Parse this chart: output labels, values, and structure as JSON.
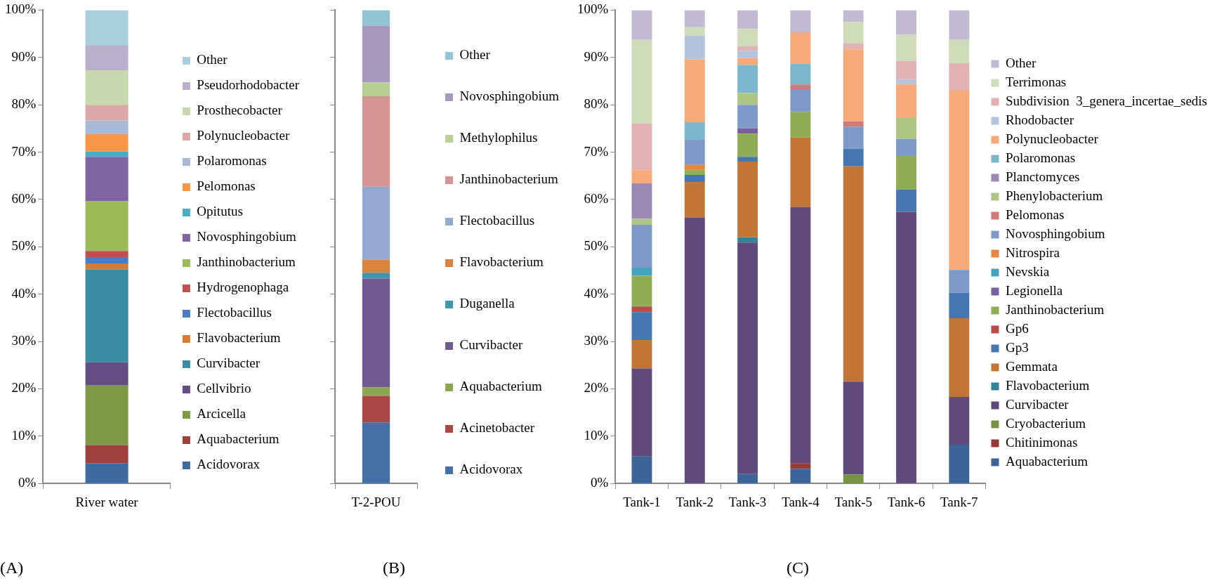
{
  "chart_data": [
    {
      "type": "bar",
      "stacked": true,
      "categories": [
        "River water"
      ],
      "ylim": [
        0,
        100
      ],
      "yticks": [
        {
          "value": 0,
          "label": "0%"
        },
        {
          "value": 10,
          "label": "10%"
        },
        {
          "value": 20,
          "label": "20%"
        },
        {
          "value": 30,
          "label": "30%"
        },
        {
          "value": 40,
          "label": "40%"
        },
        {
          "value": 50,
          "label": "50%"
        },
        {
          "value": 60,
          "label": "60%"
        },
        {
          "value": 70,
          "label": "70%"
        },
        {
          "value": 80,
          "label": "80%"
        },
        {
          "value": 90,
          "label": "90%"
        },
        {
          "value": 100,
          "label": "100%"
        }
      ],
      "grid": false,
      "legend": "right",
      "annotations": [
        "(A)"
      ],
      "series": [
        {
          "name": "Acidovorax",
          "color": "#3e6aa0",
          "values": [
            4.3
          ]
        },
        {
          "name": "Aquabacterium",
          "color": "#a0403d",
          "values": [
            3.8
          ]
        },
        {
          "name": "Arcicella",
          "color": "#7d9a45",
          "values": [
            12.6
          ]
        },
        {
          "name": "Cellvibrio",
          "color": "#644d84",
          "values": [
            4.9
          ]
        },
        {
          "name": "Curvibacter",
          "color": "#3a8ca3",
          "values": [
            19.6
          ]
        },
        {
          "name": "Flavobacterium",
          "color": "#d17c37",
          "values": [
            1.3
          ]
        },
        {
          "name": "Flectobacillus",
          "color": "#4a7ebf",
          "values": [
            1.3
          ]
        },
        {
          "name": "Hydrogenophaga",
          "color": "#c0504d",
          "values": [
            1.3
          ]
        },
        {
          "name": "Janthinobacterium",
          "color": "#9bbb59",
          "values": [
            10.5
          ]
        },
        {
          "name": "Novosphingobium",
          "color": "#8064a2",
          "values": [
            9.4
          ]
        },
        {
          "name": "Opitutus",
          "color": "#4bacc6",
          "values": [
            1.1
          ]
        },
        {
          "name": "Pelomonas",
          "color": "#f79646",
          "values": [
            3.7
          ]
        },
        {
          "name": "Polaromonas",
          "color": "#aab9d7",
          "values": [
            2.9
          ]
        },
        {
          "name": "Polynucleobacter",
          "color": "#dba8a7",
          "values": [
            3.3
          ]
        },
        {
          "name": "Prosthecobacter",
          "color": "#c7d8ac",
          "values": [
            7.3
          ]
        },
        {
          "name": "Pseudorhodobacter",
          "color": "#bbb0cc",
          "values": [
            5.3
          ]
        },
        {
          "name": "Other",
          "color": "#a9cfdd",
          "values": [
            7.4
          ]
        }
      ]
    },
    {
      "type": "bar",
      "stacked": true,
      "categories": [
        "T-2-POU"
      ],
      "ylim": [
        0,
        100
      ],
      "yticks": [
        {
          "value": 0,
          "label": null
        },
        {
          "value": 10,
          "label": null
        },
        {
          "value": 20,
          "label": null
        },
        {
          "value": 30,
          "label": null
        },
        {
          "value": 40,
          "label": null
        },
        {
          "value": 50,
          "label": null
        },
        {
          "value": 60,
          "label": null
        },
        {
          "value": 70,
          "label": null
        },
        {
          "value": 80,
          "label": null
        },
        {
          "value": 90,
          "label": null
        },
        {
          "value": 100,
          "label": null
        }
      ],
      "tick_labels": "x",
      "grid": false,
      "legend": "right",
      "annotations": [
        "(B)"
      ],
      "series": [
        {
          "name": "Acidovorax",
          "color": "#4470a5",
          "values": [
            12.9
          ]
        },
        {
          "name": "Acinetobacter",
          "color": "#aa4644",
          "values": [
            5.6
          ]
        },
        {
          "name": "Aquabacterium",
          "color": "#8aa652",
          "values": [
            1.8
          ]
        },
        {
          "name": "Curvibacter",
          "color": "#71588f",
          "values": [
            23.0
          ]
        },
        {
          "name": "Duganella",
          "color": "#3e97ad",
          "values": [
            1.2
          ]
        },
        {
          "name": "Flavobacterium",
          "color": "#db843d",
          "values": [
            2.8
          ]
        },
        {
          "name": "Flectobacillus",
          "color": "#95a8d0",
          "values": [
            15.4
          ]
        },
        {
          "name": "Janthinobacterium",
          "color": "#d49593",
          "values": [
            19.1
          ]
        },
        {
          "name": "Methylophilus",
          "color": "#b9d095",
          "values": [
            2.9
          ]
        },
        {
          "name": "Novosphingobium",
          "color": "#a699bd",
          "values": [
            12.0
          ]
        },
        {
          "name": "Other",
          "color": "#93c5d6",
          "values": [
            3.3
          ]
        }
      ]
    },
    {
      "type": "bar",
      "stacked": true,
      "categories": [
        "Tank-1",
        "Tank-2",
        "Tank-3",
        "Tank-4",
        "Tank-5",
        "Tank-6",
        "Tank-7"
      ],
      "ylim": [
        0,
        100
      ],
      "yticks": [
        {
          "value": 0,
          "label": "0%"
        },
        {
          "value": 10,
          "label": "10%"
        },
        {
          "value": 20,
          "label": "20%"
        },
        {
          "value": 30,
          "label": "30%"
        },
        {
          "value": 40,
          "label": "40%"
        },
        {
          "value": 50,
          "label": "50%"
        },
        {
          "value": 60,
          "label": "60%"
        },
        {
          "value": 70,
          "label": "70%"
        },
        {
          "value": 80,
          "label": "80%"
        },
        {
          "value": 90,
          "label": "90%"
        },
        {
          "value": 100,
          "label": "100%"
        }
      ],
      "grid": false,
      "legend": "right",
      "annotations": [
        "(C)"
      ],
      "series": [
        {
          "name": "Aquabacterium",
          "color": "#3c6497",
          "values": [
            5.7,
            0,
            2.0,
            3.1,
            0,
            0,
            8.2
          ]
        },
        {
          "name": "Chitinimonas",
          "color": "#983a37",
          "values": [
            0,
            0,
            0,
            1.2,
            0,
            0,
            0
          ]
        },
        {
          "name": "Cryobacterium",
          "color": "#769443",
          "values": [
            0,
            0,
            0,
            0,
            1.9,
            0,
            0
          ]
        },
        {
          "name": "Curvibacter",
          "color": "#604a7b",
          "values": [
            18.6,
            56.2,
            48.9,
            54.1,
            19.6,
            57.4,
            10.1
          ]
        },
        {
          "name": "Flavobacterium",
          "color": "#31849b",
          "values": [
            0,
            0,
            1.1,
            0,
            0,
            0,
            0
          ]
        },
        {
          "name": "Gemmata",
          "color": "#c27534",
          "values": [
            6.0,
            7.5,
            16.0,
            14.7,
            45.5,
            0,
            16.6
          ]
        },
        {
          "name": "Gp3",
          "color": "#4777b0",
          "values": [
            5.9,
            1.5,
            1.0,
            0,
            3.7,
            4.7,
            5.4
          ]
        },
        {
          "name": "Gp6",
          "color": "#b94c49",
          "values": [
            1.2,
            0,
            0,
            0,
            0,
            0,
            0
          ]
        },
        {
          "name": "Janthinobacterium",
          "color": "#8fad52",
          "values": [
            6.5,
            1.0,
            4.9,
            5.4,
            0,
            7.1,
            0
          ]
        },
        {
          "name": "Legionella",
          "color": "#7a5f9e",
          "values": [
            0,
            0,
            1.1,
            0,
            0,
            0,
            0
          ]
        },
        {
          "name": "Nevskia",
          "color": "#45a4bd",
          "values": [
            1.7,
            0,
            0,
            0,
            0,
            0,
            0
          ]
        },
        {
          "name": "Nitrospira",
          "color": "#e8883d",
          "values": [
            0,
            1.1,
            0,
            0,
            0,
            0,
            0
          ]
        },
        {
          "name": "Novosphingobium",
          "color": "#7e9ac8",
          "values": [
            9.1,
            5.4,
            5.0,
            4.8,
            4.7,
            3.6,
            4.8
          ]
        },
        {
          "name": "Pelomonas",
          "color": "#cd7c7a",
          "values": [
            0,
            0,
            0,
            1.0,
            1.1,
            0,
            0
          ]
        },
        {
          "name": "Phenylobacterium",
          "color": "#aec683",
          "values": [
            1.2,
            0,
            2.5,
            0,
            0,
            4.4,
            0
          ]
        },
        {
          "name": "Planctomyces",
          "color": "#9b89b4",
          "values": [
            7.5,
            0,
            0,
            0,
            0,
            0,
            0
          ]
        },
        {
          "name": "Polaromonas",
          "color": "#7bb8cd",
          "values": [
            0,
            3.6,
            5.9,
            4.4,
            0,
            0,
            0
          ]
        },
        {
          "name": "Polynucleobacter",
          "color": "#f7a977",
          "values": [
            2.8,
            13.3,
            1.5,
            6.6,
            15.2,
            7.1,
            37.9
          ]
        },
        {
          "name": "Rhodobacter",
          "color": "#b4c3de",
          "values": [
            0,
            5.0,
            1.5,
            0,
            0,
            1.1,
            0
          ]
        },
        {
          "name": "Subdivision  3_genera_incertae_sedis",
          "color": "#e0b3b2",
          "values": [
            9.8,
            0,
            1.0,
            0,
            1.3,
            3.9,
            5.8
          ]
        },
        {
          "name": "Terrimonas",
          "color": "#cfdcb8",
          "values": [
            17.7,
            1.8,
            3.6,
            0,
            4.5,
            5.5,
            4.9
          ]
        },
        {
          "name": "Other",
          "color": "#c2b9d3",
          "values": [
            6.3,
            3.6,
            4.0,
            4.7,
            2.5,
            5.2,
            6.3
          ]
        }
      ]
    }
  ]
}
